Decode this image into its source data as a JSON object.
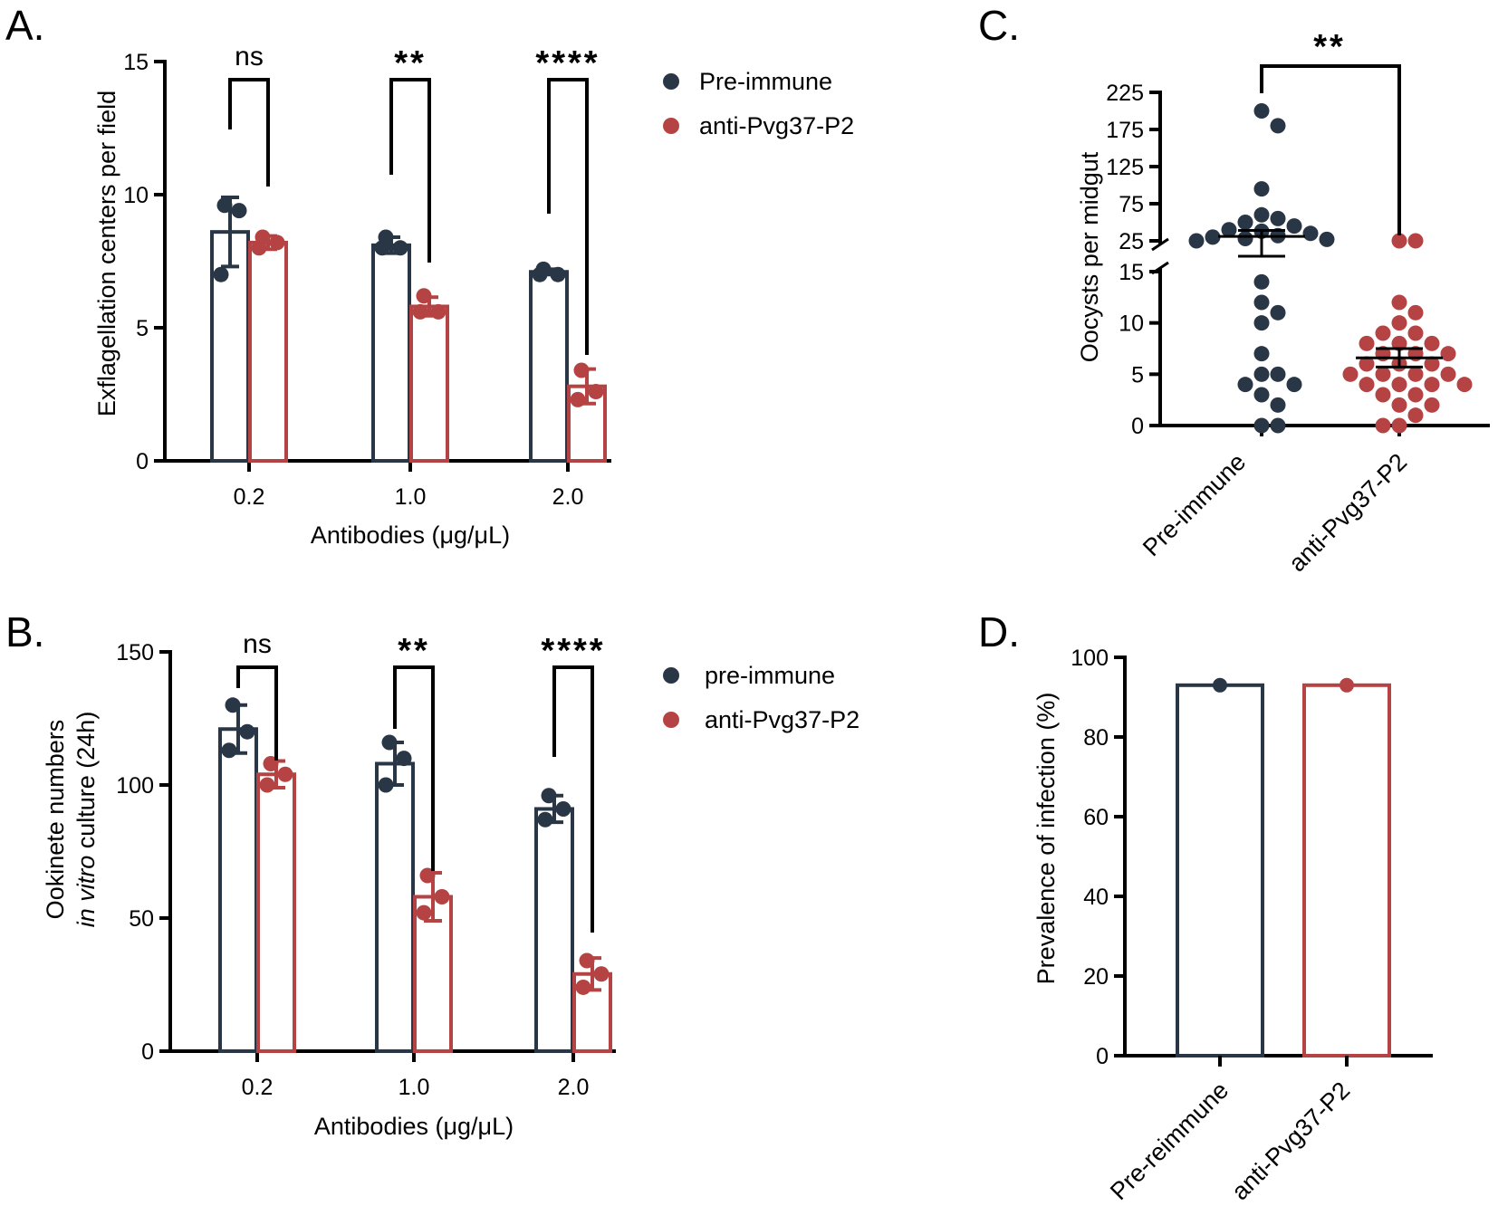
{
  "colors": {
    "dark": "#283645",
    "red": "#b64343",
    "axis": "#000000"
  },
  "chart_data": [
    {
      "panel": "A.",
      "type": "bar",
      "categories": [
        "0.2",
        "1.0",
        "2.0"
      ],
      "xlabel": "Antibodies (μg/μL)",
      "ylabel": "Exflagellation centers per field",
      "ylim": [
        0,
        15
      ],
      "yticks": [
        "0",
        "5",
        "10",
        "15"
      ],
      "legend": [
        "Pre-immune",
        "anti-Pvg37-P2"
      ],
      "series": [
        {
          "name": "Pre-immune",
          "color": "dark",
          "values": [
            8.6,
            8.1,
            7.1
          ],
          "sd": [
            1.3,
            0.3,
            0.1
          ],
          "points": [
            [
              9.6,
              9.4,
              7.0
            ],
            [
              8.4,
              8.0,
              8.0
            ],
            [
              7.2,
              7.0,
              7.0
            ]
          ]
        },
        {
          "name": "anti-Pvg37-P2",
          "color": "red",
          "values": [
            8.2,
            5.8,
            2.8
          ],
          "sd": [
            0.25,
            0.35,
            0.65
          ],
          "points": [
            [
              8.4,
              8.2,
              8.0
            ],
            [
              6.2,
              5.6,
              5.6
            ],
            [
              3.4,
              2.6,
              2.3
            ]
          ]
        }
      ],
      "significance": [
        "ns",
        "**",
        "****"
      ]
    },
    {
      "panel": "B.",
      "type": "bar",
      "categories": [
        "0.2",
        "1.0",
        "2.0"
      ],
      "xlabel": "Antibodies (μg/μL)",
      "ylabel_line1": "Ookinete numbers",
      "ylabel_line2_italic": "in vitro",
      "ylabel_line2_rest": " culture (24h)",
      "ylim": [
        0,
        150
      ],
      "yticks": [
        "0",
        "50",
        "100",
        "150"
      ],
      "legend": [
        "pre-immune",
        "anti-Pvg37-P2"
      ],
      "series": [
        {
          "name": "pre-immune",
          "color": "dark",
          "values": [
            121,
            108,
            91
          ],
          "sd": [
            9,
            8,
            5
          ],
          "points": [
            [
              130,
              120,
              113
            ],
            [
              116,
              110,
              100
            ],
            [
              96,
              91,
              87
            ]
          ]
        },
        {
          "name": "anti-Pvg37-P2",
          "color": "red",
          "values": [
            104,
            58,
            29
          ],
          "sd": [
            5,
            9,
            6
          ],
          "points": [
            [
              108,
              104,
              100
            ],
            [
              66,
              58,
              52
            ],
            [
              34,
              29,
              24
            ]
          ]
        }
      ],
      "significance": [
        "ns",
        "**",
        "****"
      ]
    },
    {
      "panel": "C.",
      "type": "scatter",
      "categories": [
        "Pre-immune",
        "anti-Pvg37-P2"
      ],
      "ylabel": "Oocysts per midgut",
      "y_segments": {
        "lower": [
          0,
          15
        ],
        "upper": [
          25,
          225
        ]
      },
      "yticks_lower": [
        "0",
        "5",
        "10",
        "15"
      ],
      "yticks_upper": [
        "25",
        "75",
        "125",
        "175",
        "225"
      ],
      "groups": [
        {
          "name": "Pre-immune",
          "color": "dark",
          "mean": 31,
          "sem": 8,
          "values": [
            200,
            180,
            95,
            60,
            55,
            50,
            45,
            40,
            38,
            35,
            32,
            30,
            28,
            27,
            25,
            14,
            12,
            11,
            10,
            7,
            5,
            5,
            4,
            4,
            3,
            2,
            0,
            0
          ]
        },
        {
          "name": "anti-Pvg37-P2",
          "color": "red",
          "mean": 6.6,
          "sem": 0.9,
          "values": [
            25,
            25,
            12,
            11,
            10,
            9,
            9,
            8,
            8,
            8,
            7,
            7,
            7,
            6,
            6,
            6,
            5,
            5,
            5,
            5,
            4,
            4,
            4,
            4,
            3,
            3,
            2,
            2,
            1,
            0,
            0
          ]
        }
      ],
      "significance": "**"
    },
    {
      "panel": "D.",
      "type": "bar",
      "categories": [
        "Pre-reimmune",
        "anti-Pvg37-P2"
      ],
      "ylabel": "Prevalence of infection (%)",
      "ylim": [
        0,
        100
      ],
      "yticks": [
        "0",
        "20",
        "40",
        "60",
        "80",
        "100"
      ],
      "series": [
        {
          "name": "Pre-reimmune",
          "color": "dark",
          "value": 93
        },
        {
          "name": "anti-Pvg37-P2",
          "color": "red",
          "value": 93
        }
      ]
    }
  ]
}
